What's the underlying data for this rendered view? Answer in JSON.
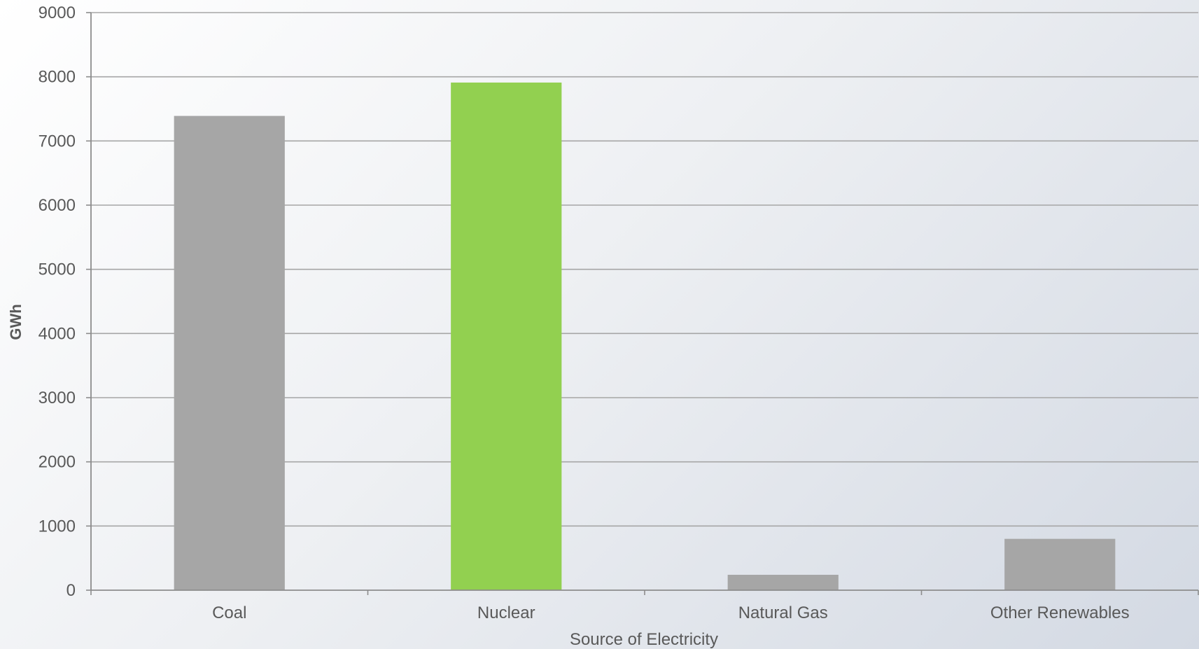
{
  "chart_data": {
    "type": "bar",
    "title": "",
    "xlabel": "Source of Electricity",
    "ylabel": "GWh",
    "categories": [
      "Coal",
      "Nuclear",
      "Natural Gas",
      "Other Renewables"
    ],
    "values": [
      7390,
      7910,
      240,
      800
    ],
    "bar_colors": [
      "#a6a6a6",
      "#92d050",
      "#a6a6a6",
      "#a6a6a6"
    ],
    "ylim": [
      0,
      9000
    ],
    "yticks": [
      0,
      1000,
      2000,
      3000,
      4000,
      5000,
      6000,
      7000,
      8000,
      9000
    ],
    "grid": true,
    "legend": "none"
  },
  "colors": {
    "grid": "#a6a6a6",
    "axis": "#8c8c8c",
    "text": "#595959"
  }
}
